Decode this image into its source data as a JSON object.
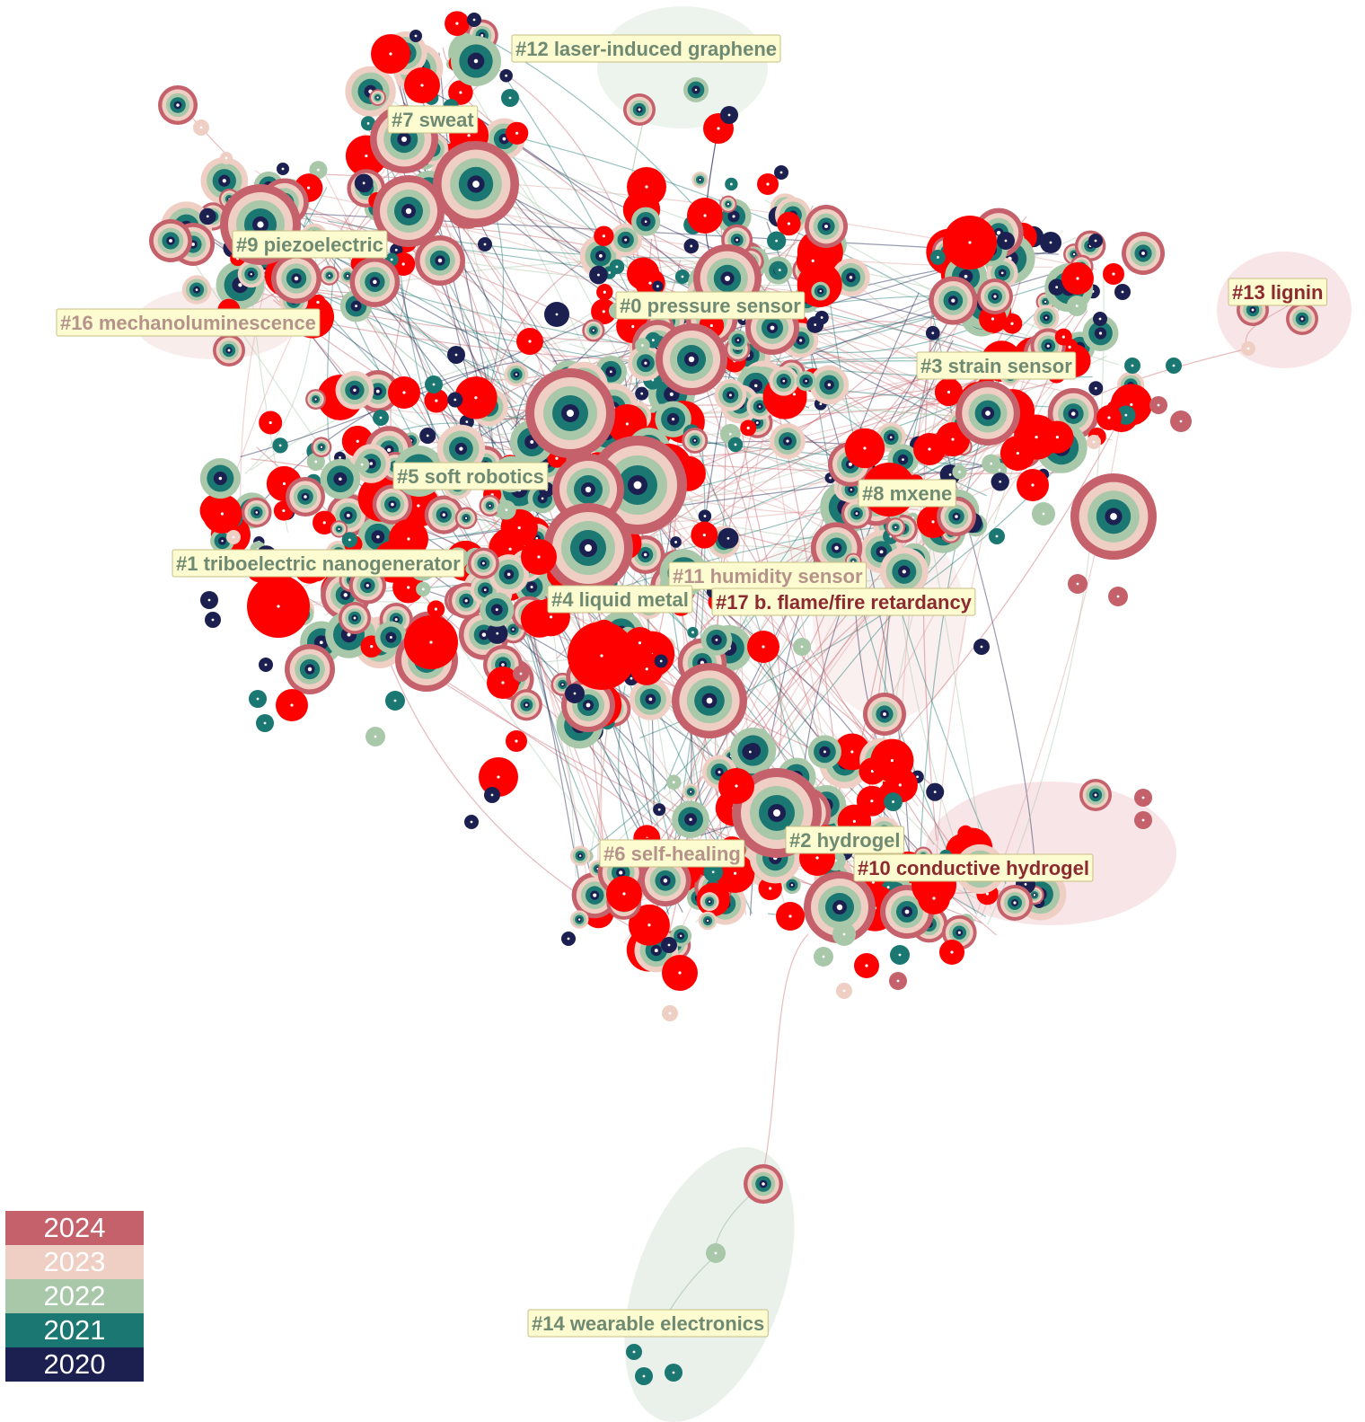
{
  "clusters": [
    {
      "id": "c12",
      "label": "#12 laser-induced graphene",
      "text_color": "#6e8a72"
    },
    {
      "id": "c7",
      "label": "#7 sweat",
      "text_color": "#6e8a72"
    },
    {
      "id": "c9",
      "label": "#9 piezoelectric",
      "text_color": "#6e8a72"
    },
    {
      "id": "c16",
      "label": "#16 mechanoluminescence",
      "text_color": "#b5928a"
    },
    {
      "id": "c0",
      "label": "#0 pressure sensor",
      "text_color": "#6e8a72"
    },
    {
      "id": "c13",
      "label": "#13 lignin",
      "text_color": "#8c2a30"
    },
    {
      "id": "c3",
      "label": "#3 strain sensor",
      "text_color": "#6e8a72"
    },
    {
      "id": "c5",
      "label": "#5 soft robotics",
      "text_color": "#6e8a72"
    },
    {
      "id": "c8",
      "label": "#8 mxene",
      "text_color": "#6e8a72"
    },
    {
      "id": "c1",
      "label": "#1 triboelectric nanogenerator",
      "text_color": "#6e8a72"
    },
    {
      "id": "c11",
      "label": "#11 humidity sensor",
      "text_color": "#b5928a"
    },
    {
      "id": "c4",
      "label": "#4 liquid metal",
      "text_color": "#6e8a72"
    },
    {
      "id": "c17",
      "label": "#17 b. flame/fire retardancy",
      "text_color": "#8c2a30"
    },
    {
      "id": "c2",
      "label": "#2 hydrogel",
      "text_color": "#6e8a72"
    },
    {
      "id": "c6",
      "label": "#6 self-healing",
      "text_color": "#b5928a"
    },
    {
      "id": "c10",
      "label": "#10 conductive hydrogel",
      "text_color": "#8c2a30"
    },
    {
      "id": "c14",
      "label": "#14 wearable electronics",
      "text_color": "#6e8a72"
    }
  ],
  "legend": [
    {
      "year": "2024",
      "color": "#c5616a"
    },
    {
      "year": "2023",
      "color": "#efcfc4"
    },
    {
      "year": "2022",
      "color": "#a9c8aa"
    },
    {
      "year": "2021",
      "color": "#1a7771"
    },
    {
      "year": "2020",
      "color": "#1b2050"
    }
  ],
  "colors": {
    "burst": "#ff0000",
    "label_fill": "#fdfbd0",
    "label_stroke": "#c7bf86"
  }
}
